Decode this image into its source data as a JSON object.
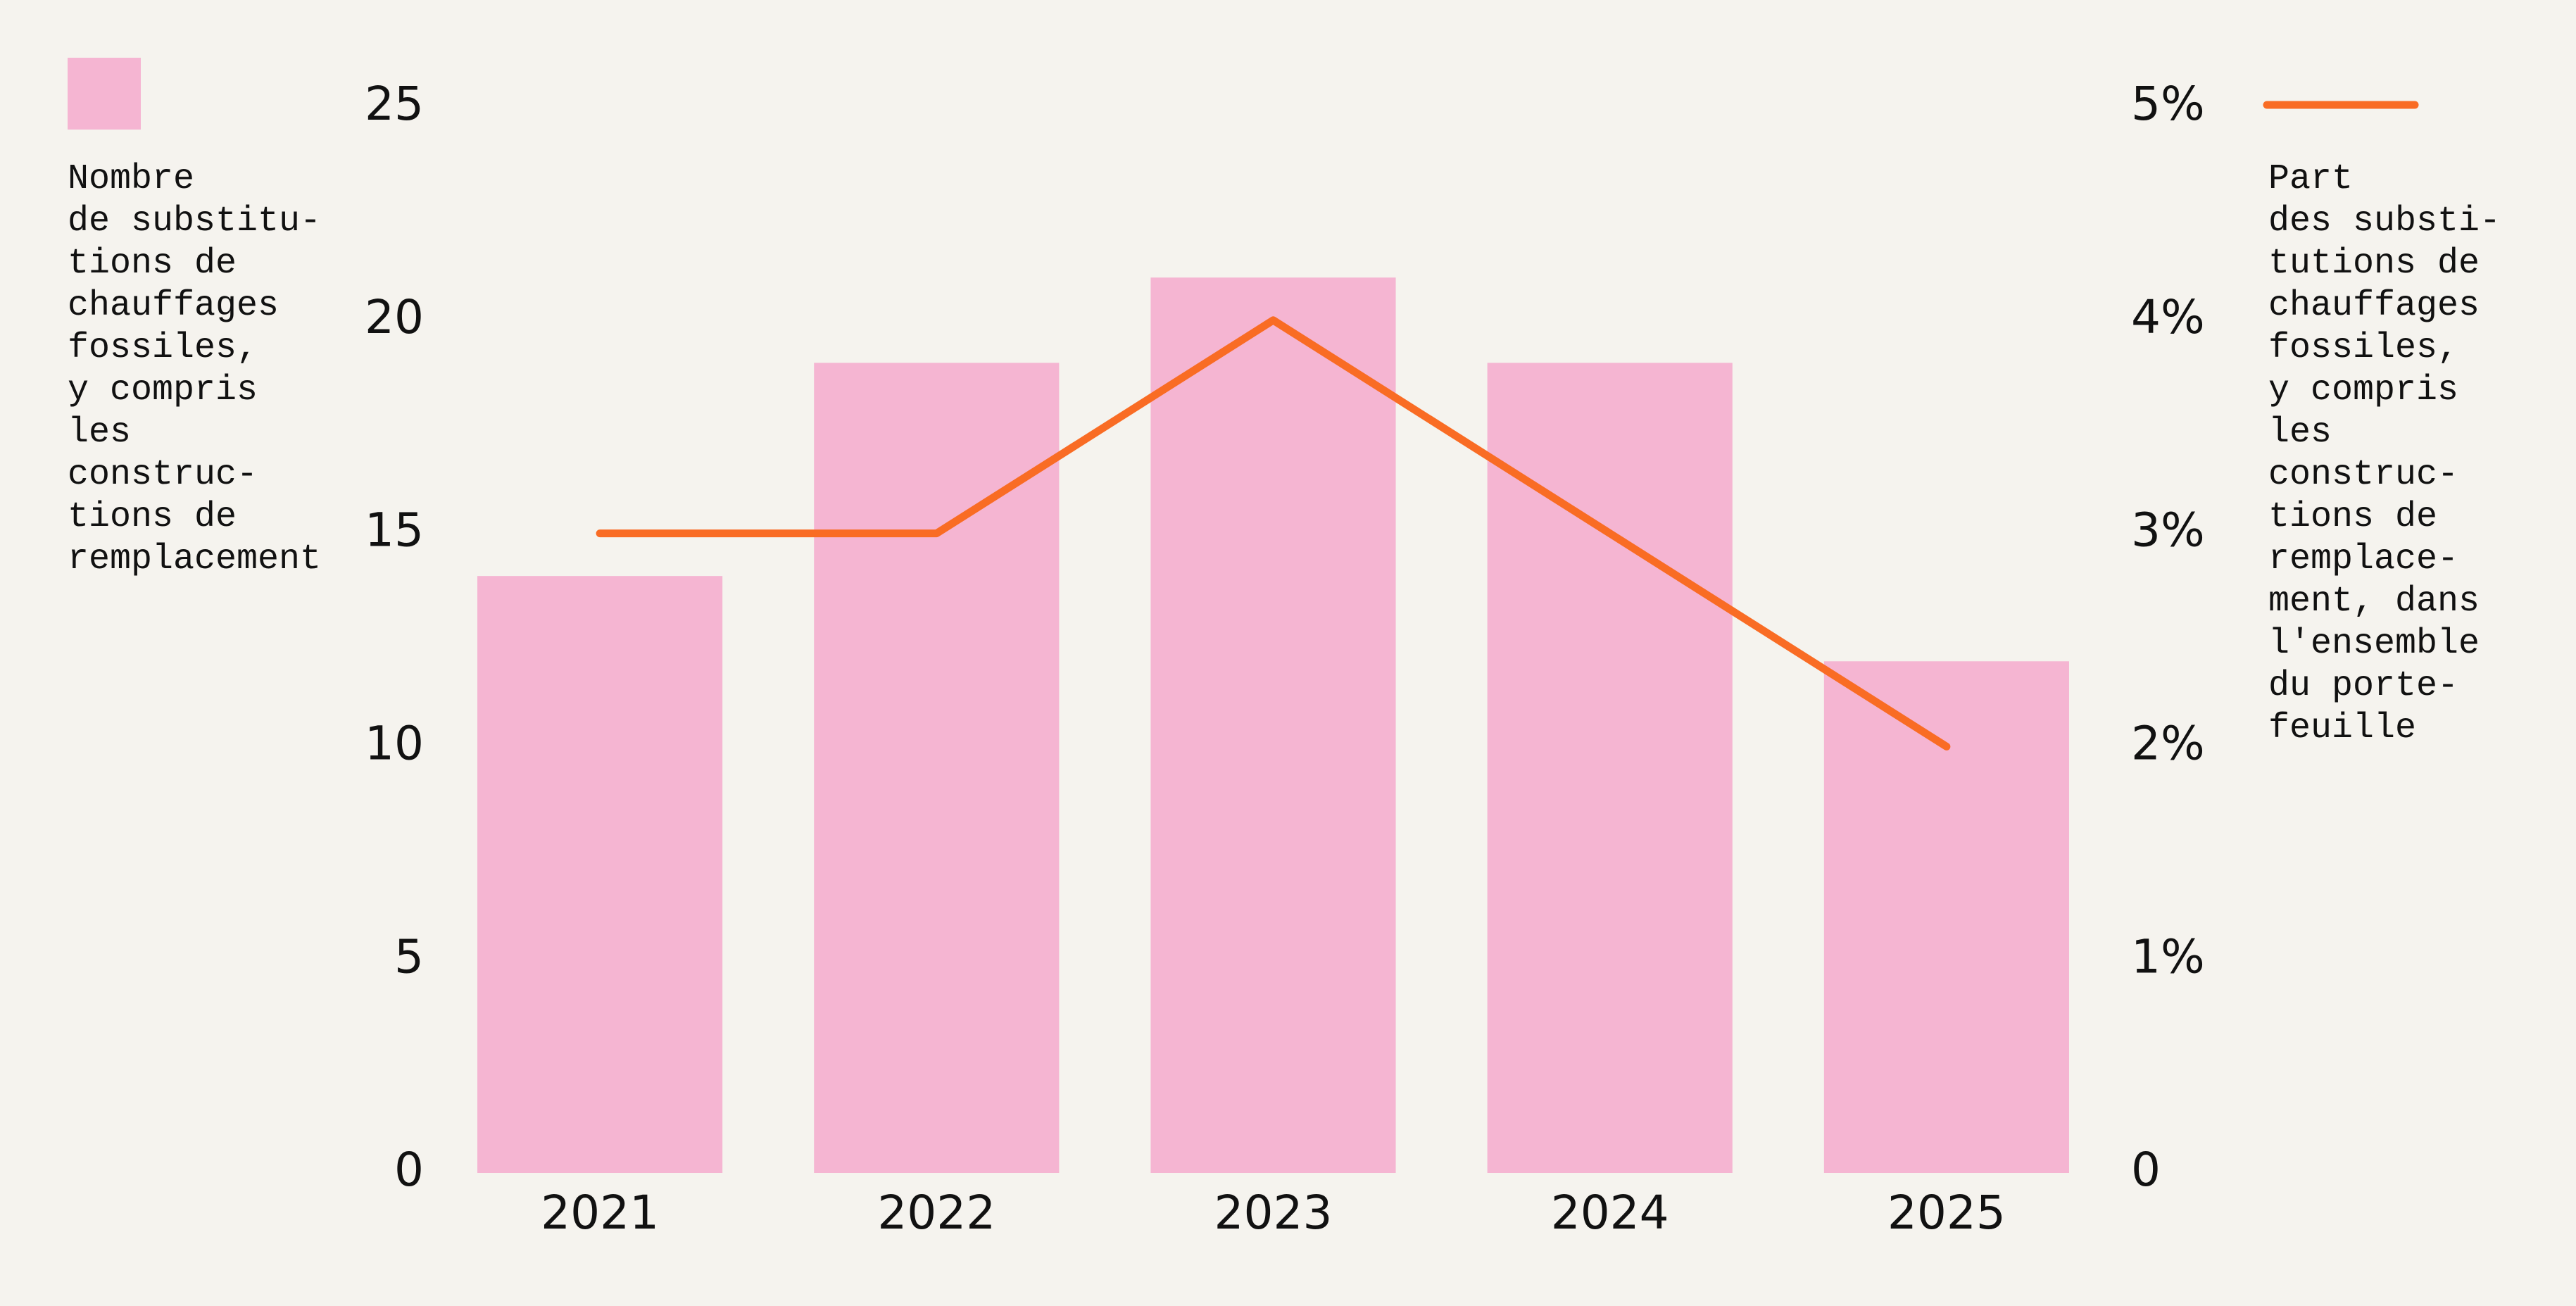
{
  "chart_data": {
    "type": "bar-line",
    "categories": [
      "2021",
      "2022",
      "2023",
      "2024",
      "2025"
    ],
    "series": [
      {
        "name": "Nombre\nde substitu-\ntions de\nchauffages\nfossiles,\ny compris\nles\nconstruc-\ntions de\nremplacement",
        "type": "bar",
        "color": "#f5b5d2",
        "values": [
          14,
          19,
          21,
          19,
          12
        ]
      },
      {
        "name": "Part\ndes substi-\ntutions de\nchauffages\nfossiles,\ny compris\nles\nconstruc-\ntions de\nremplace-\nment, dans\nl'ensemble\ndu porte-\nfeuille",
        "type": "line",
        "axis": "y2",
        "color": "#f96c24",
        "values": [
          3,
          3,
          4,
          3,
          2
        ]
      }
    ],
    "ylim": [
      0,
      25
    ],
    "yticks": [
      0,
      5,
      10,
      15,
      20,
      25
    ],
    "y2lim": [
      0,
      5
    ],
    "y2ticks": [
      0,
      {
        "value": 1,
        "label": "1%"
      },
      {
        "value": 2,
        "label": "2%"
      },
      {
        "value": 3,
        "label": "3%"
      },
      {
        "value": 4,
        "label": "4%"
      },
      {
        "value": 5,
        "label": "5%"
      }
    ],
    "grid": false
  }
}
